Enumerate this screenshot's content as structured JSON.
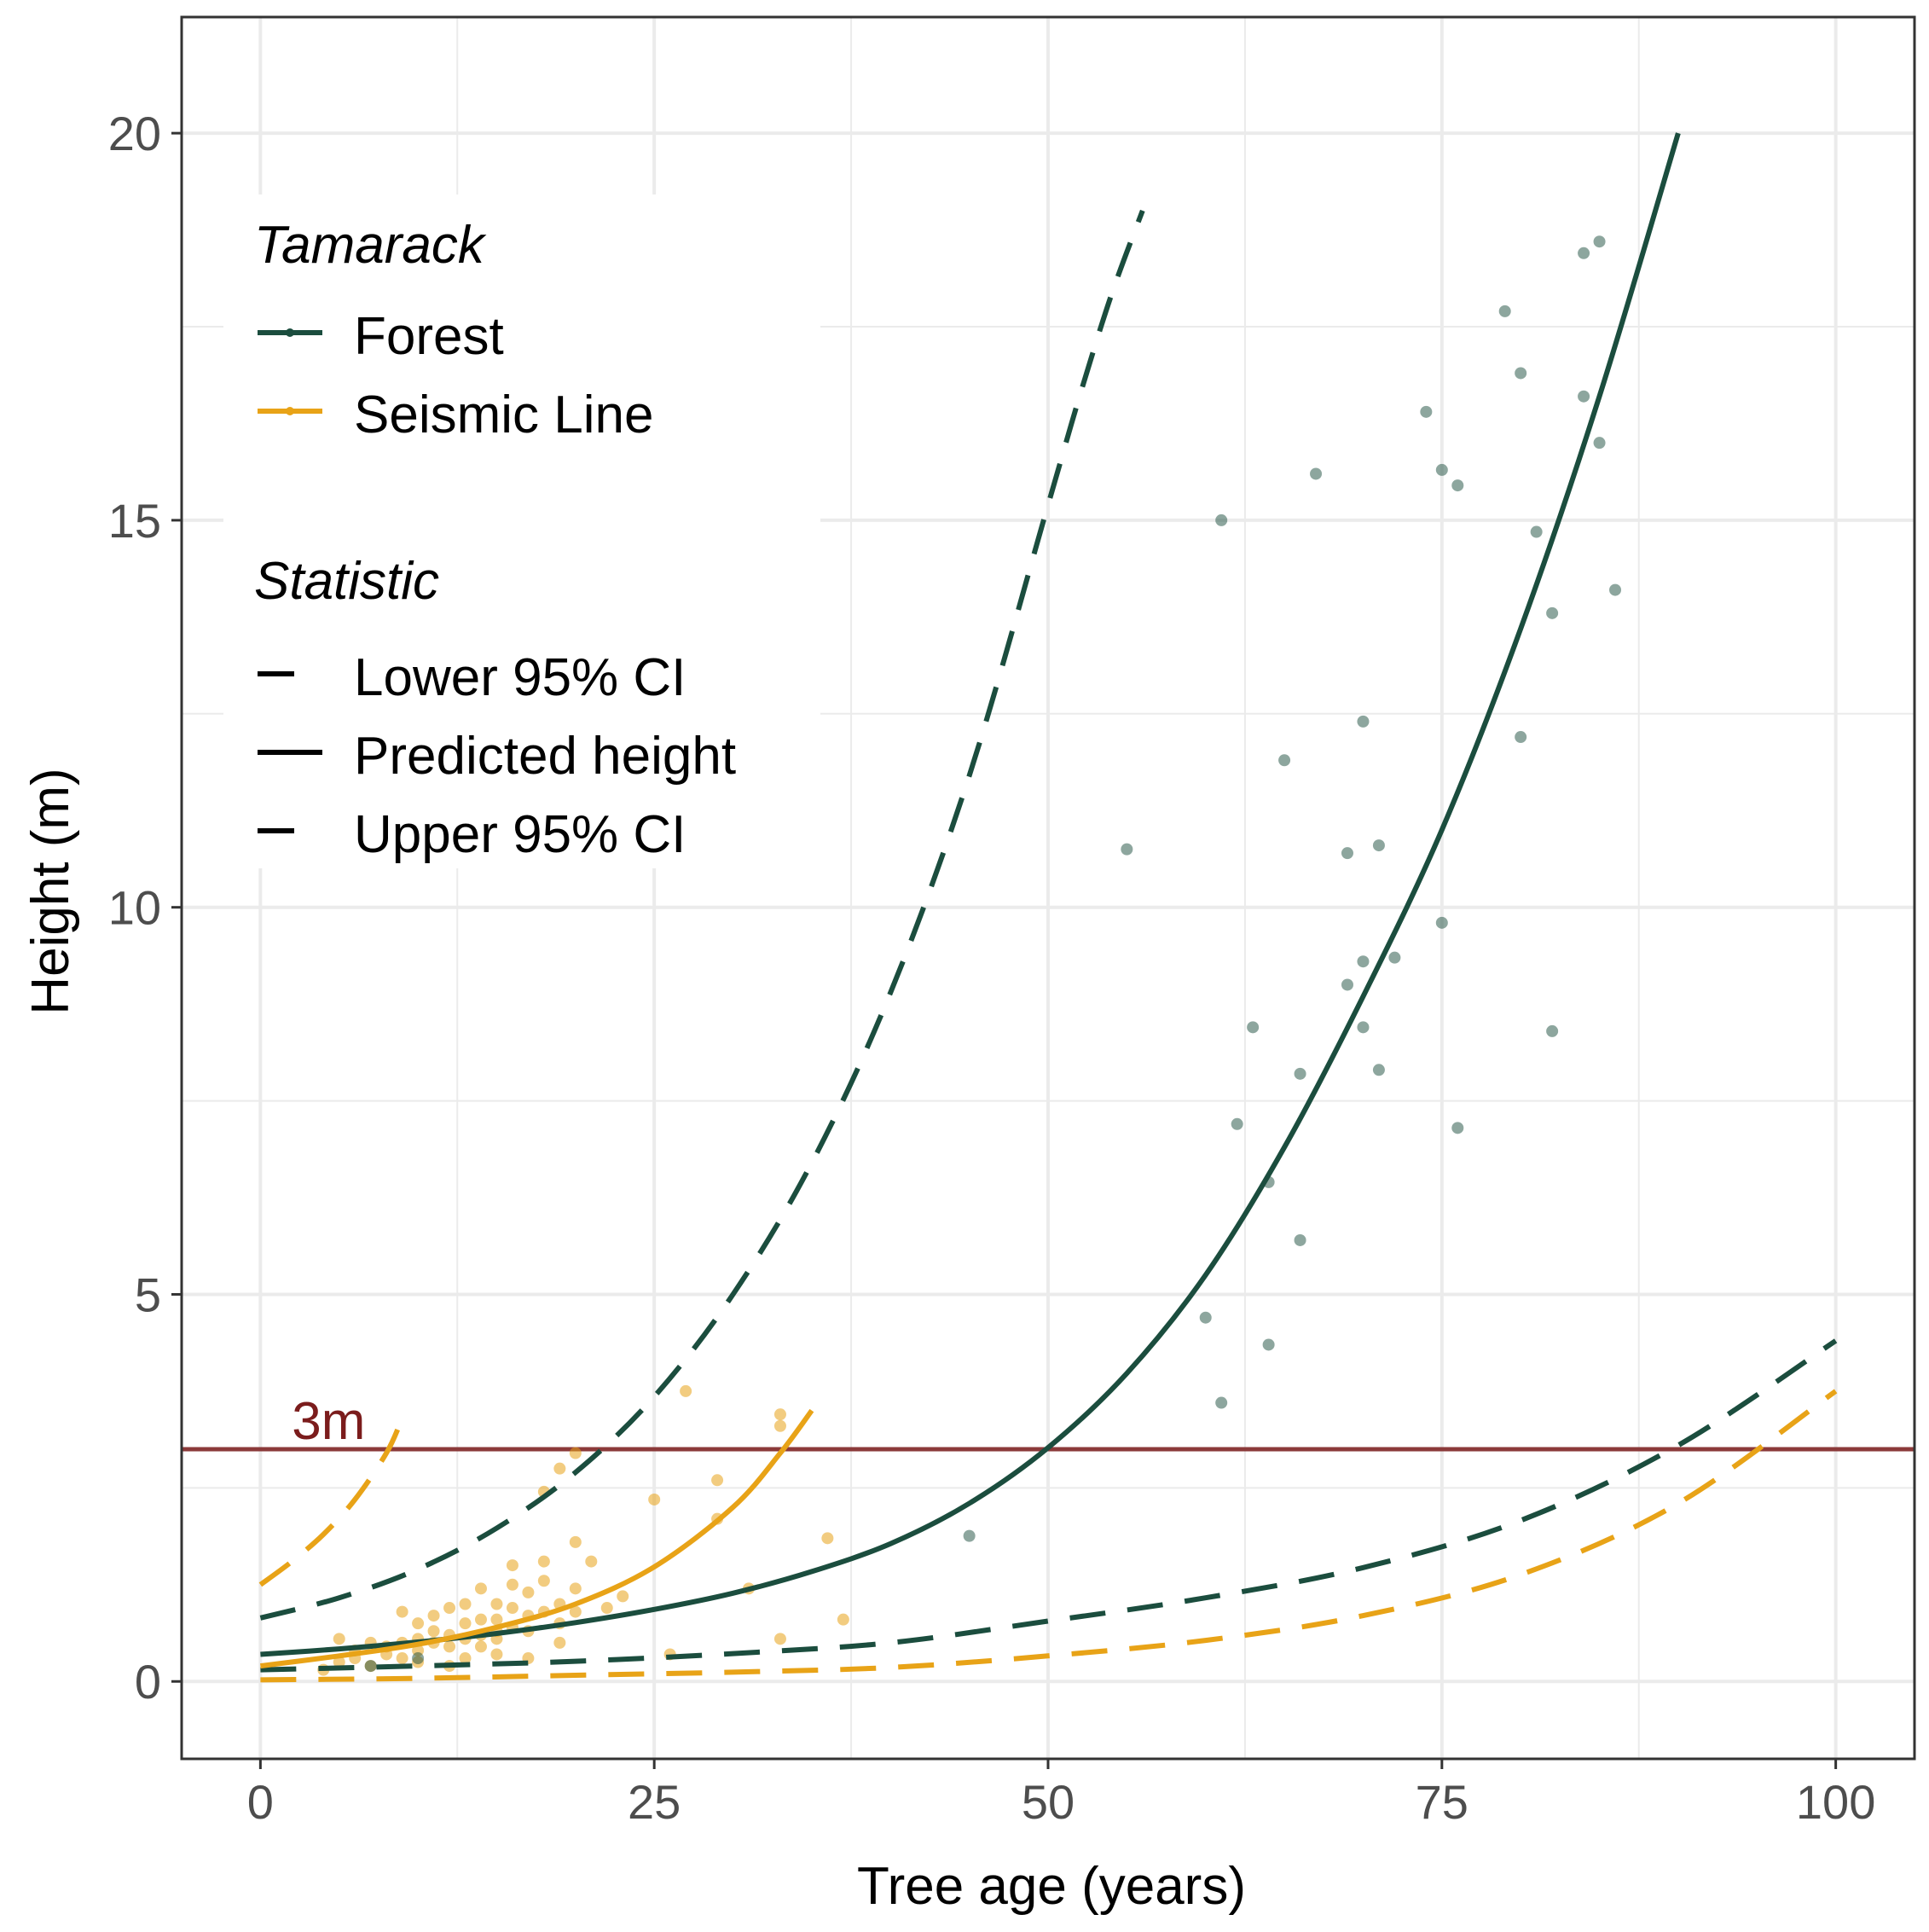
{
  "chart_data": {
    "type": "line+scatter",
    "xlabel": "Tree age (years)",
    "ylabel": "Height (m)",
    "xlim": [
      -5,
      105
    ],
    "ylim": [
      -1,
      21.5
    ],
    "x_ticks": [
      0,
      25,
      50,
      75,
      100
    ],
    "x_tick_labels": [
      "0",
      "25",
      "50",
      "75",
      "100"
    ],
    "y_ticks": [
      0,
      5,
      10,
      15,
      20
    ],
    "y_tick_labels": [
      "0",
      "5",
      "10",
      "15",
      "20"
    ],
    "grid": true,
    "legend_position": "top-left",
    "colors": {
      "forest": "#1b4d3e",
      "seismic": "#e8a317",
      "reference": "#8b3a3a",
      "grid": "#ebebeb"
    },
    "legend": {
      "group1_title": "Tamarack",
      "group1_items": [
        "Forest",
        "Seismic Line"
      ],
      "group2_title": "Statistic",
      "group2_items": [
        "Lower 95% CI",
        "Predicted height",
        "Upper 95% CI"
      ]
    },
    "reference_line": {
      "y": 3,
      "label": "3m"
    },
    "series": [
      {
        "name": "Forest",
        "statistic": "Predicted height",
        "style": "solid",
        "x": [
          0,
          5,
          10,
          15,
          20,
          25,
          30,
          35,
          40,
          45,
          50,
          55,
          60,
          65,
          70,
          75,
          80,
          85,
          90
        ],
        "y": [
          0.35,
          0.42,
          0.51,
          0.62,
          0.76,
          0.93,
          1.14,
          1.42,
          1.78,
          2.3,
          3.02,
          3.98,
          5.25,
          6.9,
          8.85,
          11.0,
          13.6,
          16.6,
          20.0
        ]
      },
      {
        "name": "Forest",
        "statistic": "Upper 95% CI",
        "style": "dashed",
        "x": [
          0,
          5,
          10,
          15,
          20,
          25,
          30,
          35,
          40,
          45,
          50,
          52,
          54,
          56
        ],
        "y": [
          0.82,
          1.08,
          1.45,
          1.98,
          2.7,
          3.68,
          5.0,
          6.7,
          8.9,
          11.7,
          15.2,
          16.6,
          17.9,
          19.0
        ]
      },
      {
        "name": "Forest",
        "statistic": "Lower 95% CI",
        "style": "dashed",
        "x": [
          0,
          10,
          20,
          30,
          40,
          50,
          60,
          70,
          80,
          90,
          100
        ],
        "y": [
          0.15,
          0.2,
          0.26,
          0.36,
          0.5,
          0.78,
          1.08,
          1.47,
          2.08,
          3.05,
          4.4
        ]
      },
      {
        "name": "Seismic Line",
        "statistic": "Predicted height",
        "style": "solid",
        "x": [
          0,
          5,
          10,
          15,
          20,
          25,
          30,
          33,
          35
        ],
        "y": [
          0.2,
          0.33,
          0.48,
          0.7,
          1.0,
          1.48,
          2.25,
          2.95,
          3.5
        ]
      },
      {
        "name": "Seismic Line",
        "statistic": "Upper 95% CI",
        "style": "dashed",
        "x": [
          0,
          2,
          4,
          6,
          8,
          9
        ],
        "y": [
          1.25,
          1.55,
          1.9,
          2.35,
          2.95,
          3.4
        ]
      },
      {
        "name": "Seismic Line",
        "statistic": "Lower 95% CI",
        "style": "dashed",
        "x": [
          0,
          10,
          20,
          30,
          40,
          50,
          60,
          70,
          80,
          90,
          100
        ],
        "y": [
          0.02,
          0.04,
          0.08,
          0.12,
          0.18,
          0.33,
          0.53,
          0.85,
          1.38,
          2.3,
          3.75
        ]
      }
    ],
    "points": {
      "forest": [
        [
          45,
          1.88
        ],
        [
          55,
          10.75
        ],
        [
          60,
          4.7
        ],
        [
          61,
          3.6
        ],
        [
          61,
          15.0
        ],
        [
          62,
          7.2
        ],
        [
          63,
          8.45
        ],
        [
          64,
          4.35
        ],
        [
          64,
          6.45
        ],
        [
          65,
          11.9
        ],
        [
          66,
          5.7
        ],
        [
          66,
          7.85
        ],
        [
          67,
          15.6
        ],
        [
          69,
          9.0
        ],
        [
          69,
          10.7
        ],
        [
          70,
          9.3
        ],
        [
          70,
          12.4
        ],
        [
          70,
          8.45
        ],
        [
          71,
          10.8
        ],
        [
          71,
          7.9
        ],
        [
          72,
          9.35
        ],
        [
          74,
          16.4
        ],
        [
          75,
          9.8
        ],
        [
          75,
          15.65
        ],
        [
          76,
          15.45
        ],
        [
          76,
          7.15
        ],
        [
          79,
          17.7
        ],
        [
          80,
          12.2
        ],
        [
          80,
          16.9
        ],
        [
          81,
          14.85
        ],
        [
          82,
          13.8
        ],
        [
          82,
          8.4
        ],
        [
          84,
          18.45
        ],
        [
          84,
          16.6
        ],
        [
          85,
          18.6
        ],
        [
          85,
          16.0
        ],
        [
          86,
          14.1
        ],
        [
          7,
          0.2
        ],
        [
          10,
          0.3
        ]
      ],
      "seismic": [
        [
          4,
          0.15
        ],
        [
          5,
          0.25
        ],
        [
          6,
          0.4
        ],
        [
          6,
          0.3
        ],
        [
          7,
          0.2
        ],
        [
          8,
          0.45
        ],
        [
          8,
          0.35
        ],
        [
          9,
          0.5
        ],
        [
          9,
          0.3
        ],
        [
          9,
          0.9
        ],
        [
          10,
          0.4
        ],
        [
          10,
          0.55
        ],
        [
          10,
          0.25
        ],
        [
          11,
          0.5
        ],
        [
          11,
          0.65
        ],
        [
          12,
          0.45
        ],
        [
          12,
          0.6
        ],
        [
          12,
          0.2
        ],
        [
          13,
          0.55
        ],
        [
          13,
          0.75
        ],
        [
          13,
          1.0
        ],
        [
          14,
          0.6
        ],
        [
          14,
          0.45
        ],
        [
          14,
          1.2
        ],
        [
          15,
          0.55
        ],
        [
          15,
          0.8
        ],
        [
          15,
          1.0
        ],
        [
          15,
          0.35
        ],
        [
          16,
          0.7
        ],
        [
          16,
          0.95
        ],
        [
          16,
          1.5
        ],
        [
          17,
          0.65
        ],
        [
          17,
          0.85
        ],
        [
          17,
          1.15
        ],
        [
          17,
          0.3
        ],
        [
          18,
          0.9
        ],
        [
          18,
          1.3
        ],
        [
          18,
          1.55
        ],
        [
          18,
          2.45
        ],
        [
          19,
          0.75
        ],
        [
          19,
          1.0
        ],
        [
          19,
          2.75
        ],
        [
          20,
          0.9
        ],
        [
          20,
          1.2
        ],
        [
          20,
          1.8
        ],
        [
          20,
          2.95
        ],
        [
          21,
          1.55
        ],
        [
          22,
          0.95
        ],
        [
          23,
          1.1
        ],
        [
          25,
          2.35
        ],
        [
          26,
          0.35
        ],
        [
          27,
          3.75
        ],
        [
          29,
          2.1
        ],
        [
          29,
          2.6
        ],
        [
          31,
          1.2
        ],
        [
          33,
          3.3
        ],
        [
          33,
          3.45
        ],
        [
          33,
          0.55
        ],
        [
          36,
          1.85
        ],
        [
          37,
          0.8
        ],
        [
          5,
          0.55
        ],
        [
          11,
          0.85
        ],
        [
          13,
          0.3
        ],
        [
          16,
          1.25
        ],
        [
          19,
          0.5
        ],
        [
          7,
          0.5
        ],
        [
          10,
          0.75
        ],
        [
          12,
          0.95
        ],
        [
          14,
          0.8
        ],
        [
          15,
          0.65
        ]
      ]
    }
  }
}
